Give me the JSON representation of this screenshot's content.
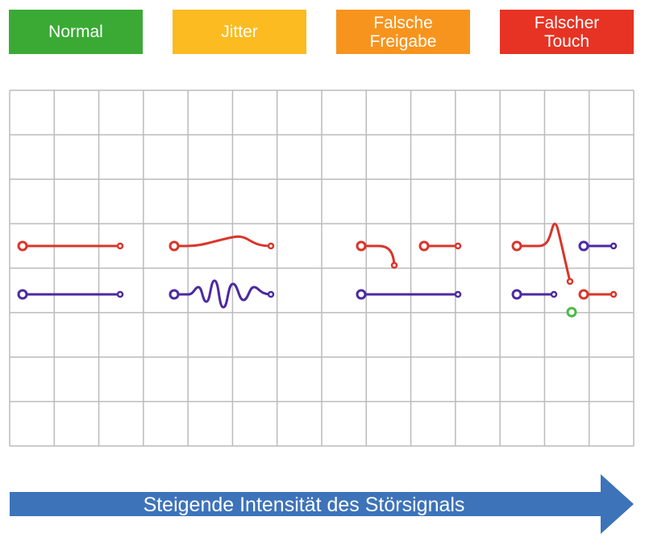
{
  "categories": [
    {
      "id": "normal",
      "label": "Normal",
      "color": "#3aaa35"
    },
    {
      "id": "jitter",
      "label": "Jitter",
      "color": "#fbbb21"
    },
    {
      "id": "false_release",
      "label": "Falsche\nFreigabe",
      "color": "#f7941d"
    },
    {
      "id": "false_touch",
      "label": "Falscher\nTouch",
      "color": "#e63323"
    }
  ],
  "arrow": {
    "label": "Steigende Intensität des Störsignals",
    "color": "#3d73b9"
  },
  "colors": {
    "red_trace": "#d9352a",
    "purple_trace": "#4b2aa0",
    "green_marker": "#4cb848",
    "grid": "#bbbbbb"
  }
}
